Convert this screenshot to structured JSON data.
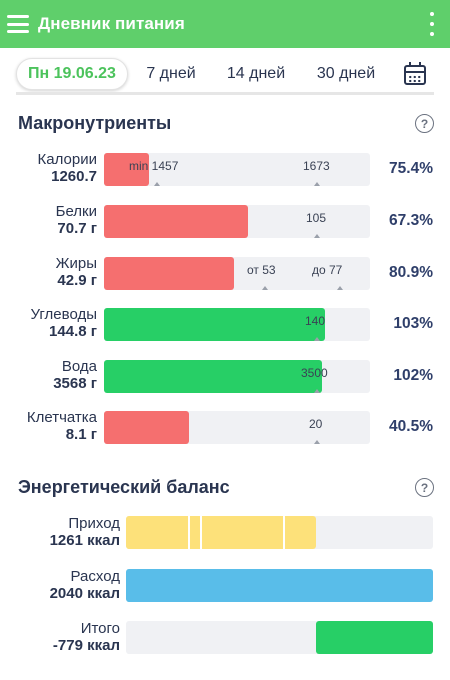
{
  "app_title": "Дневник питания",
  "tabs": [
    {
      "label": "Пн 19.06.23",
      "active": true
    },
    {
      "label": "7 дней",
      "active": false
    },
    {
      "label": "14 дней",
      "active": false
    },
    {
      "label": "30 дней",
      "active": false
    }
  ],
  "macros": {
    "title": "Макронутриенты",
    "rows": [
      {
        "name": "Калории",
        "value": "1260.7",
        "percent": "75.4%",
        "fill_fraction": 0.17,
        "color": "red",
        "markers": [
          {
            "text": "min 1457"
          },
          {
            "text": "1673"
          }
        ]
      },
      {
        "name": "Белки",
        "value": "70.7 г",
        "percent": "67.3%",
        "fill_fraction": 0.54,
        "color": "red",
        "markers": [
          {
            "text": "105"
          }
        ]
      },
      {
        "name": "Жиры",
        "value": "42.9 г",
        "percent": "80.9%",
        "fill_fraction": 0.49,
        "color": "red",
        "markers": [
          {
            "text": "от 53"
          },
          {
            "text": "до 77"
          }
        ]
      },
      {
        "name": "Углеводы",
        "value": "144.8 г",
        "percent": "103%",
        "fill_fraction": 0.83,
        "color": "green",
        "markers": [
          {
            "text": "140"
          }
        ]
      },
      {
        "name": "Вода",
        "value": "3568 г",
        "percent": "102%",
        "fill_fraction": 0.82,
        "color": "green",
        "markers": [
          {
            "text": "3500"
          }
        ]
      },
      {
        "name": "Клетчатка",
        "value": "8.1 г",
        "percent": "40.5%",
        "fill_fraction": 0.32,
        "color": "red",
        "markers": [
          {
            "text": "20"
          }
        ]
      }
    ]
  },
  "energy": {
    "title": "Энергетический баланс",
    "rows": [
      {
        "name": "Приход",
        "value": "1261 ккал",
        "color": "yellow"
      },
      {
        "name": "Расход",
        "value": "2040 ккал",
        "color": "blue"
      },
      {
        "name": "Итого",
        "value": "-779 ккал",
        "color": "green"
      }
    ]
  },
  "colors": {
    "appbar": "#5fcf6b",
    "red": "#f56f6f",
    "green": "#27cf66",
    "yellow": "#fde17a",
    "blue": "#59bde9",
    "text": "#2a3550"
  }
}
